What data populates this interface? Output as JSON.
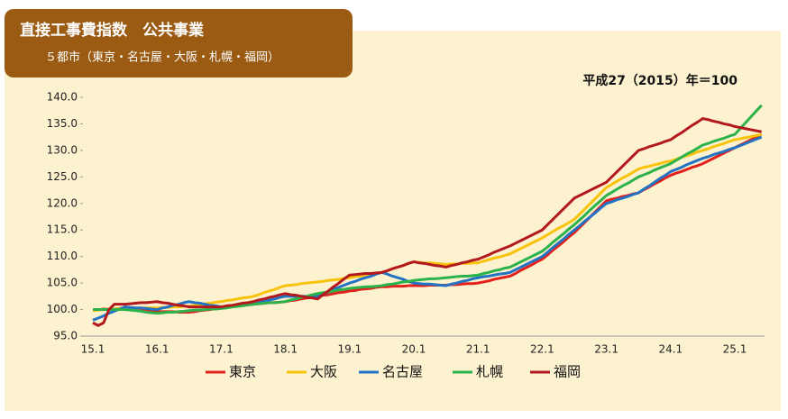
{
  "chart_data": {
    "type": "line",
    "title": "直接工事費指数　公共事業",
    "subtitle": "５都市（東京・名古屋・大阪・札幌・福岡）",
    "note": "平成27（2015）年＝100",
    "categories": [
      "15.1",
      null,
      null,
      null,
      null,
      null,
      null,
      null,
      null,
      null,
      null,
      null,
      "16.1",
      null,
      null,
      null,
      null,
      null,
      null,
      null,
      null,
      null,
      null,
      null,
      "17.1",
      null,
      null,
      null,
      null,
      null,
      null,
      null,
      null,
      null,
      null,
      null,
      "18.1",
      null,
      null,
      null,
      null,
      null,
      null,
      null,
      null,
      null,
      null,
      null,
      "19.1",
      null,
      null,
      null,
      null,
      null,
      null,
      null,
      null,
      null,
      null,
      null,
      "20.1",
      null,
      null,
      null,
      null,
      null,
      null,
      null,
      null,
      null,
      null,
      null,
      "21.1",
      null,
      null,
      null,
      null,
      null,
      null,
      null,
      null,
      null,
      null,
      null,
      "22.1",
      null,
      null,
      null,
      null,
      null,
      null,
      null,
      null,
      null,
      null,
      null,
      "23.1",
      null,
      null,
      null,
      null,
      null,
      null,
      null,
      null,
      null,
      null,
      null,
      "24.1",
      null,
      null,
      null,
      null,
      null,
      null,
      null,
      null,
      null,
      null,
      null,
      "25.1",
      null,
      null,
      null,
      null,
      null
    ],
    "ylim": [
      95,
      140
    ],
    "yticks": [
      {
        "value": 95,
        "label": "95.0"
      },
      {
        "value": 100,
        "label": "100.0"
      },
      {
        "value": 105,
        "label": "105.0"
      },
      {
        "value": 110,
        "label": "110.0"
      },
      {
        "value": 115,
        "label": "115.0"
      },
      {
        "value": 120,
        "label": "120.0"
      },
      {
        "value": 125,
        "label": "125.0"
      },
      {
        "value": 130,
        "label": "130.0"
      },
      {
        "value": 135,
        "label": "135.0"
      },
      {
        "value": 140,
        "label": "140.0"
      }
    ],
    "series": [
      {
        "name": "東京",
        "color": "#e3211c",
        "values": [
          100.0,
          100.0,
          100.1,
          100.1,
          100.1,
          100.2,
          100.2,
          100.1,
          100.0,
          99.9,
          99.8,
          99.7,
          99.6,
          99.6,
          99.6,
          99.6,
          99.5,
          99.5,
          99.5,
          99.6,
          99.8,
          99.9,
          100.0,
          100.2,
          100.3,
          100.4,
          100.5,
          100.7,
          100.8,
          100.9,
          101.0,
          101.1,
          101.2,
          101.3,
          101.3,
          101.4,
          101.5,
          101.7,
          101.8,
          102.0,
          102.2,
          102.3,
          102.5,
          102.7,
          102.8,
          103.0,
          103.2,
          103.3,
          103.5,
          103.6,
          103.8,
          103.9,
          104.0,
          104.2,
          104.3,
          104.3,
          104.4,
          104.4,
          104.4,
          104.5,
          104.5,
          104.5,
          104.5,
          104.6,
          104.6,
          104.6,
          104.6,
          104.7,
          104.7,
          104.8,
          104.9,
          104.9,
          105.0,
          105.2,
          105.4,
          105.7,
          105.9,
          106.1,
          106.3,
          106.8,
          107.4,
          107.9,
          108.4,
          109.0,
          109.5,
          110.3,
          111.2,
          112.0,
          112.8,
          113.7,
          114.5,
          115.5,
          116.5,
          117.5,
          118.5,
          119.5,
          120.5,
          120.8,
          121.0,
          121.3,
          121.5,
          121.8,
          122.0,
          122.6,
          123.1,
          123.7,
          124.2,
          124.8,
          125.3,
          125.7,
          126.0,
          126.4,
          126.8,
          127.1,
          127.5,
          128.0,
          128.5,
          129.0,
          129.5,
          130.0,
          130.5,
          131.0,
          131.5,
          132.0,
          132.5,
          133.0
        ]
      },
      {
        "name": "大阪",
        "color": "#f8c30a",
        "values": [
          99.8,
          99.9,
          100.0,
          100.1,
          100.1,
          100.2,
          100.3,
          100.3,
          100.3,
          100.3,
          100.3,
          100.3,
          100.3,
          100.4,
          100.4,
          100.5,
          100.5,
          100.6,
          100.6,
          100.8,
          101.0,
          101.1,
          101.2,
          101.4,
          101.5,
          101.7,
          101.8,
          102.0,
          102.2,
          102.3,
          102.5,
          102.8,
          103.2,
          103.5,
          103.8,
          104.2,
          104.5,
          104.6,
          104.7,
          104.9,
          105.0,
          105.1,
          105.2,
          105.3,
          105.5,
          105.6,
          105.7,
          105.9,
          106.0,
          106.2,
          106.3,
          106.5,
          106.7,
          106.8,
          107.0,
          107.3,
          107.7,
          108.0,
          108.3,
          108.7,
          109.0,
          108.9,
          108.8,
          108.8,
          108.7,
          108.6,
          108.5,
          108.6,
          108.6,
          108.7,
          108.7,
          108.8,
          108.8,
          109.1,
          109.4,
          109.7,
          109.9,
          110.2,
          110.5,
          111.0,
          111.5,
          112.0,
          112.5,
          113.0,
          113.5,
          114.1,
          114.7,
          115.3,
          115.8,
          116.4,
          117.0,
          118.0,
          119.0,
          120.0,
          121.0,
          122.0,
          123.0,
          123.6,
          124.2,
          124.8,
          125.3,
          125.9,
          126.5,
          126.8,
          127.0,
          127.3,
          127.5,
          127.8,
          128.0,
          128.3,
          128.7,
          129.0,
          129.3,
          129.7,
          130.0,
          130.3,
          130.7,
          131.0,
          131.3,
          131.7,
          132.0,
          132.2,
          132.4,
          132.6,
          132.8,
          133.0
        ]
      },
      {
        "name": "名古屋",
        "color": "#2273c3",
        "values": [
          98.0,
          98.4,
          98.8,
          99.3,
          99.7,
          100.1,
          100.5,
          100.4,
          100.3,
          100.3,
          100.2,
          100.1,
          100.0,
          100.3,
          100.5,
          100.8,
          101.0,
          101.3,
          101.5,
          101.3,
          101.2,
          101.0,
          100.8,
          100.7,
          100.5,
          100.6,
          100.7,
          100.8,
          100.8,
          100.9,
          101.0,
          101.3,
          101.5,
          101.8,
          102.0,
          102.3,
          102.5,
          102.5,
          102.5,
          102.5,
          102.5,
          102.5,
          102.5,
          102.9,
          103.3,
          103.8,
          104.2,
          104.6,
          105.0,
          105.3,
          105.7,
          106.0,
          106.3,
          106.7,
          107.0,
          106.7,
          106.3,
          106.0,
          105.7,
          105.3,
          105.0,
          104.9,
          104.8,
          104.8,
          104.7,
          104.6,
          104.5,
          104.8,
          105.0,
          105.3,
          105.5,
          105.8,
          106.0,
          106.2,
          106.3,
          106.5,
          106.7,
          106.8,
          107.0,
          107.5,
          108.0,
          108.5,
          109.0,
          109.5,
          110.0,
          110.8,
          111.7,
          112.5,
          113.3,
          114.2,
          115.0,
          115.8,
          116.7,
          117.5,
          118.3,
          119.2,
          120.0,
          120.3,
          120.7,
          121.0,
          121.3,
          121.7,
          122.0,
          122.7,
          123.3,
          124.0,
          124.7,
          125.3,
          126.0,
          126.4,
          126.8,
          127.3,
          127.7,
          128.1,
          128.5,
          128.8,
          129.2,
          129.5,
          129.8,
          130.2,
          130.5,
          130.9,
          131.3,
          131.7,
          132.1,
          132.5
        ]
      },
      {
        "name": "札幌",
        "color": "#2cb24a",
        "values": [
          100.0,
          100.0,
          100.0,
          100.0,
          100.0,
          100.0,
          100.0,
          99.9,
          99.8,
          99.7,
          99.5,
          99.4,
          99.3,
          99.4,
          99.5,
          99.5,
          99.6,
          99.7,
          99.8,
          99.9,
          99.9,
          100.0,
          100.1,
          100.1,
          100.2,
          100.3,
          100.5,
          100.6,
          100.7,
          100.9,
          101.0,
          101.1,
          101.2,
          101.3,
          101.3,
          101.4,
          101.5,
          101.8,
          102.0,
          102.3,
          102.5,
          102.8,
          103.0,
          103.2,
          103.3,
          103.5,
          103.7,
          103.8,
          104.0,
          104.1,
          104.2,
          104.3,
          104.3,
          104.4,
          104.5,
          104.7,
          104.8,
          105.0,
          105.2,
          105.3,
          105.5,
          105.6,
          105.7,
          105.8,
          105.8,
          105.9,
          106.0,
          106.1,
          106.2,
          106.3,
          106.3,
          106.4,
          106.5,
          106.8,
          107.0,
          107.3,
          107.5,
          107.8,
          108.0,
          108.5,
          109.0,
          109.5,
          110.0,
          110.5,
          111.0,
          111.8,
          112.7,
          113.5,
          114.3,
          115.2,
          116.0,
          116.9,
          117.8,
          118.8,
          119.7,
          120.6,
          121.5,
          122.1,
          122.7,
          123.3,
          123.8,
          124.4,
          125.0,
          125.4,
          125.8,
          126.3,
          126.7,
          127.1,
          127.5,
          128.1,
          128.7,
          129.3,
          129.8,
          130.4,
          131.0,
          131.3,
          131.7,
          132.0,
          132.3,
          132.7,
          133.0,
          134.1,
          135.2,
          136.3,
          137.4,
          138.5
        ]
      },
      {
        "name": "福岡",
        "color": "#b3191c",
        "values": [
          97.5,
          97.0,
          97.5,
          100.0,
          101.0,
          101.0,
          101.0,
          101.1,
          101.2,
          101.3,
          101.3,
          101.4,
          101.5,
          101.3,
          101.2,
          101.0,
          100.8,
          100.7,
          100.5,
          100.5,
          100.5,
          100.5,
          100.5,
          100.5,
          100.5,
          100.7,
          100.8,
          101.0,
          101.2,
          101.3,
          101.5,
          101.8,
          102.0,
          102.3,
          102.5,
          102.8,
          103.0,
          102.8,
          102.7,
          102.5,
          102.3,
          102.2,
          102.0,
          102.8,
          103.5,
          104.3,
          105.0,
          105.8,
          106.5,
          106.6,
          106.7,
          106.8,
          106.8,
          106.9,
          107.0,
          107.3,
          107.7,
          108.0,
          108.3,
          108.7,
          109.0,
          108.8,
          108.7,
          108.5,
          108.3,
          108.2,
          108.0,
          108.3,
          108.5,
          108.8,
          109.0,
          109.3,
          109.5,
          109.9,
          110.3,
          110.8,
          111.2,
          111.6,
          112.0,
          112.5,
          113.0,
          113.5,
          114.0,
          114.5,
          115.0,
          116.0,
          117.0,
          118.0,
          119.0,
          120.0,
          121.0,
          121.5,
          122.0,
          122.5,
          123.0,
          123.5,
          124.0,
          125.0,
          126.0,
          127.0,
          128.0,
          129.0,
          130.0,
          130.3,
          130.7,
          131.0,
          131.3,
          131.7,
          132.0,
          132.7,
          133.3,
          134.0,
          134.7,
          135.3,
          136.0,
          135.8,
          135.5,
          135.3,
          135.0,
          134.8,
          134.5,
          134.3,
          134.1,
          133.9,
          133.7,
          133.5
        ]
      }
    ]
  }
}
